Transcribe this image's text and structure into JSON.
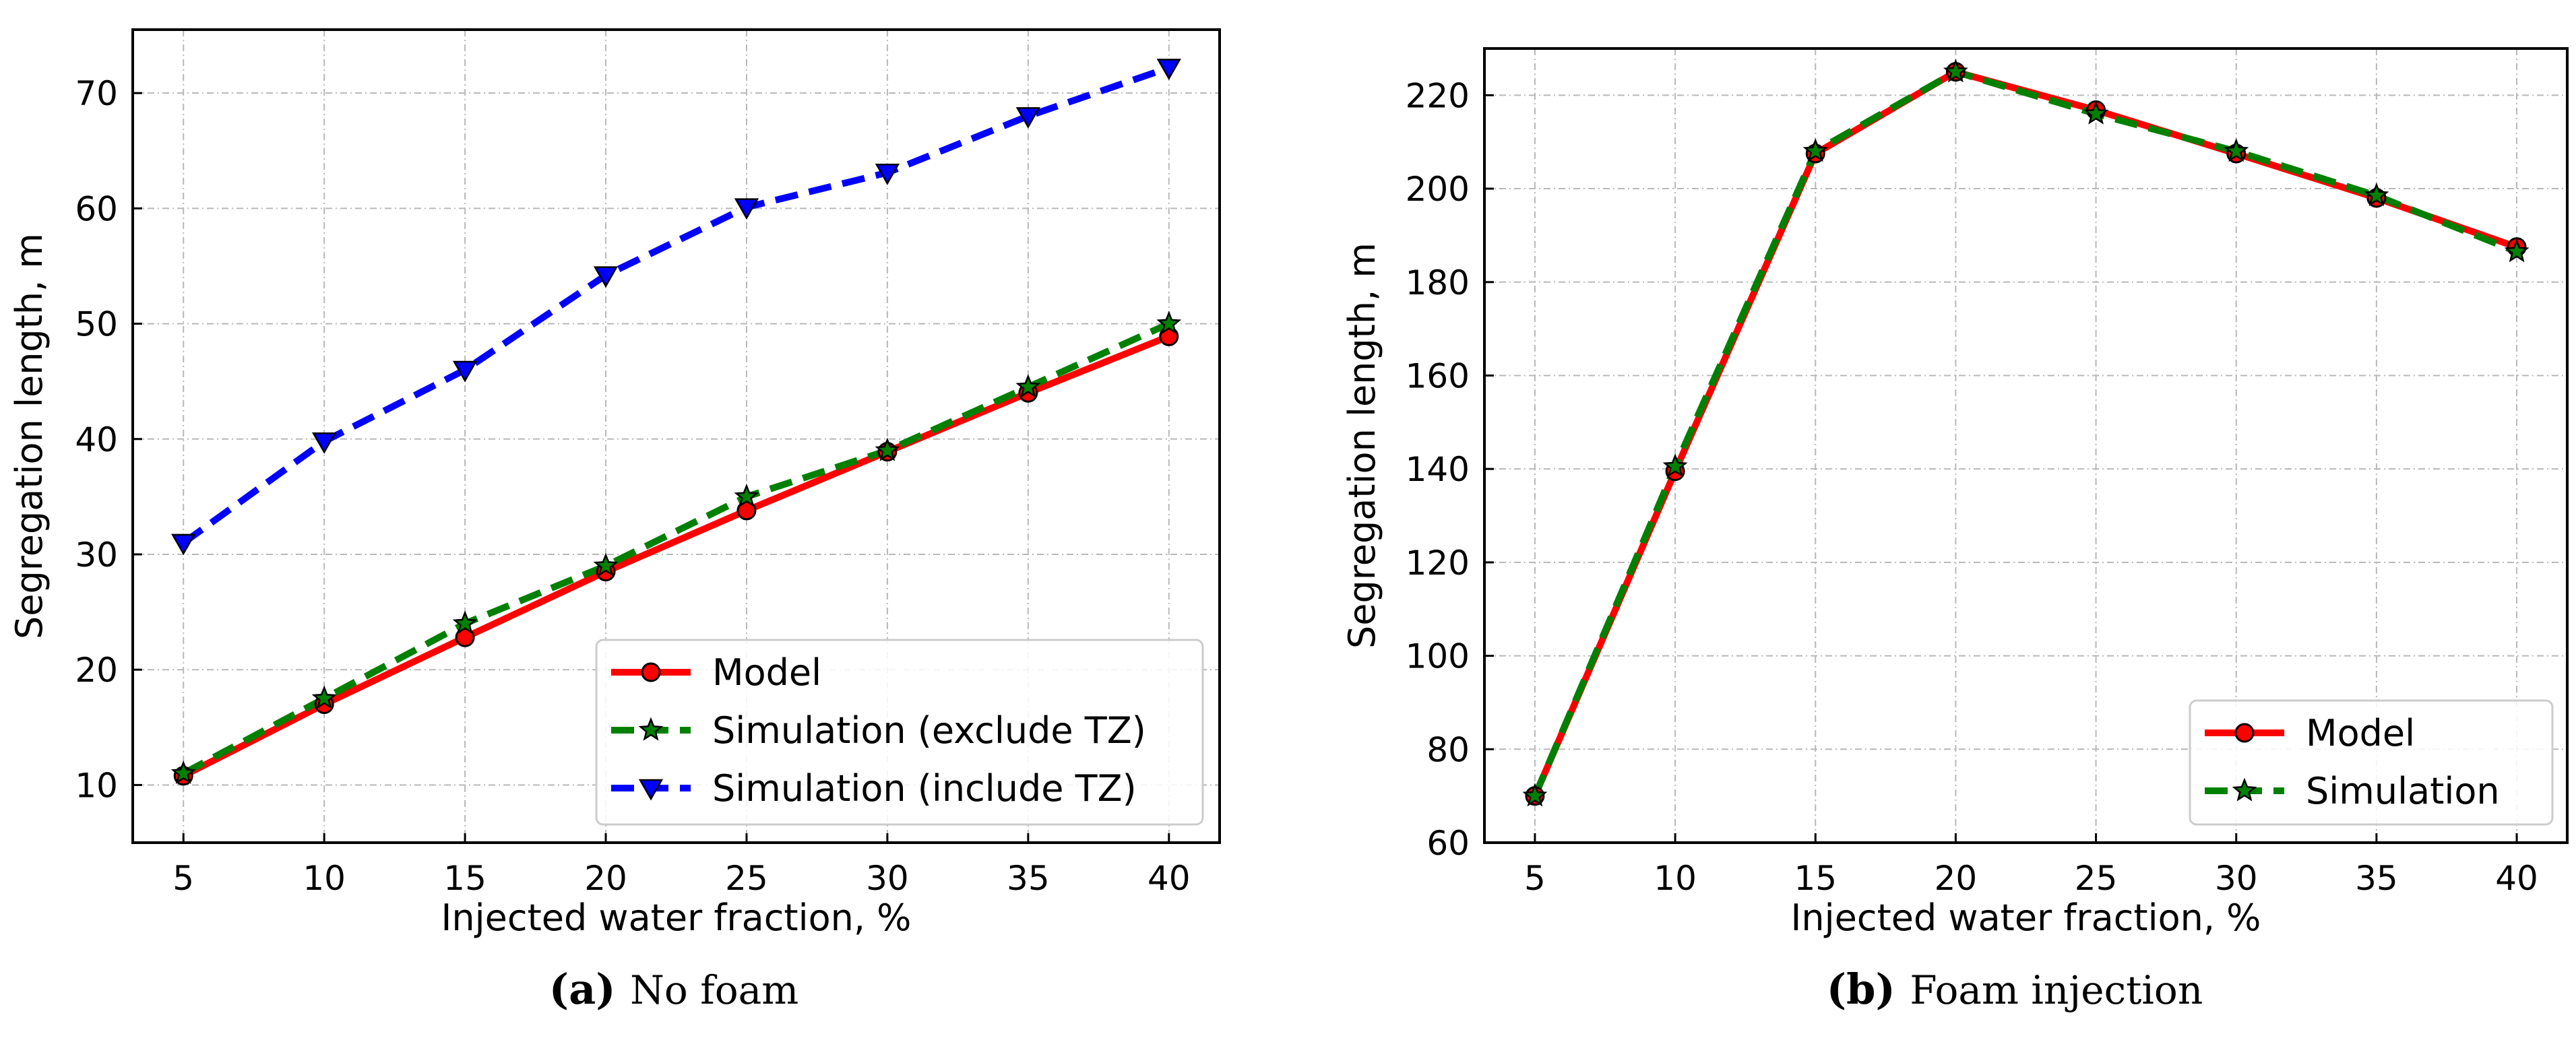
{
  "chart_data": [
    {
      "type": "line",
      "panel_letter": "(a)",
      "caption": "No foam",
      "xlabel": "Injected water fraction, %",
      "ylabel": "Segregation length, m",
      "xlim": [
        3.2,
        41.8
      ],
      "ylim": [
        5,
        75.5
      ],
      "xticks": [
        5,
        10,
        15,
        20,
        25,
        30,
        35,
        40
      ],
      "yticks": [
        10,
        20,
        30,
        40,
        50,
        60,
        70
      ],
      "grid": true,
      "legend_position": "lower-right",
      "x": [
        5,
        10,
        15,
        20,
        25,
        30,
        35,
        40
      ],
      "series": [
        {
          "name": "Model",
          "color": "#ff0000",
          "marker": "circle",
          "dash": "solid",
          "values": [
            10.8,
            17.0,
            22.8,
            28.5,
            33.8,
            38.9,
            44.0,
            48.9
          ]
        },
        {
          "name": "Simulation (exclude TZ)",
          "color": "#008000",
          "marker": "star",
          "dash": "dashed",
          "values": [
            11.0,
            17.5,
            24.0,
            29.0,
            35.0,
            39.0,
            44.5,
            50.0
          ]
        },
        {
          "name": "Simulation (include TZ)",
          "color": "#0000ff",
          "marker": "triangle-down",
          "dash": "dashed",
          "values": [
            31.0,
            39.8,
            46.0,
            54.2,
            60.1,
            63.1,
            68.0,
            72.2
          ]
        }
      ]
    },
    {
      "type": "line",
      "panel_letter": "(b)",
      "caption": "Foam injection",
      "xlabel": "Injected water fraction, %",
      "ylabel": "Segregation length, m",
      "xlim": [
        3.2,
        41.8
      ],
      "ylim": [
        60,
        230
      ],
      "xticks": [
        5,
        10,
        15,
        20,
        25,
        30,
        35,
        40
      ],
      "yticks": [
        60,
        80,
        100,
        120,
        140,
        160,
        180,
        200,
        220
      ],
      "grid": true,
      "legend_position": "lower-right",
      "x": [
        5,
        10,
        15,
        20,
        25,
        30,
        35,
        40
      ],
      "series": [
        {
          "name": "Model",
          "color": "#ff0000",
          "marker": "circle",
          "dash": "solid",
          "values": [
            70.0,
            139.5,
            207.5,
            225.0,
            216.8,
            207.5,
            198.0,
            187.5
          ]
        },
        {
          "name": "Simulation",
          "color": "#008000",
          "marker": "star",
          "dash": "dashed",
          "values": [
            70.0,
            140.5,
            208.0,
            225.0,
            216.0,
            208.0,
            198.5,
            186.5
          ]
        }
      ]
    }
  ]
}
